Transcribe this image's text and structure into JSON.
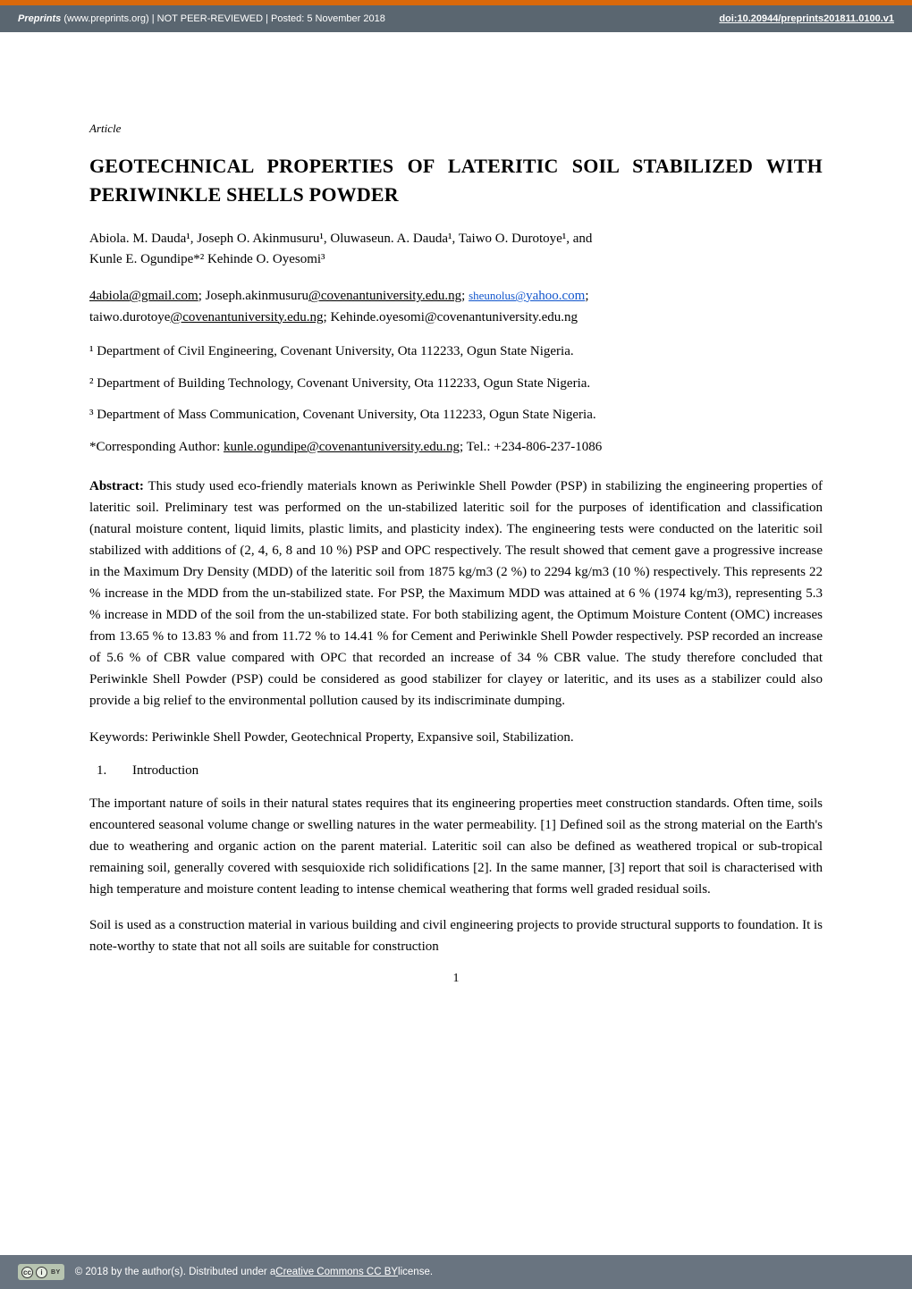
{
  "banner": {
    "site_bold": "Preprints",
    "site_rest": " (www.preprints.org)  |  NOT PEER-REVIEWED  |  Posted: 5 November 2018",
    "doi": "doi:10.20944/preprints201811.0100.v1",
    "border_top_color": "#d9680a",
    "background_color": "#5a6670",
    "text_color": "#ffffff"
  },
  "article": {
    "label": "Article",
    "title": "GEOTECHNICAL PROPERTIES OF LATERITIC SOIL STABILIZED WITH PERIWINKLE SHELLS POWDER",
    "authors_line1": "Abiola. M. Dauda¹, Joseph O. Akinmusuru¹, Oluwaseun. A. Dauda¹, Taiwo O. Durotoye¹, and",
    "authors_line2": "Kunle E. Ogundipe*² Kehinde O. Oyesomi³",
    "emails": {
      "e1_u": "4abiola@gmail.com",
      "sep1": "; Joseph.akinmusuru",
      "e2_u": "@covenantuniversity.edu.ng",
      "sep2": "; ",
      "e3_blue_a": "sheunolus@",
      "e3_blue_b": "yahoo.com",
      "sep3": ";",
      "line2_pre": "taiwo.durotoye",
      "e4_u": "@covenantuniversity.edu.ng",
      "sep4": "; Kehinde.oyesomi@covenantuniversity.edu.ng"
    },
    "affiliations": {
      "a1": "¹ Department of Civil Engineering, Covenant University, Ota 112233, Ogun State Nigeria.",
      "a2": "² Department of Building Technology, Covenant University, Ota 112233, Ogun State Nigeria.",
      "a3": "³ Department of Mass Communication, Covenant University, Ota 112233, Ogun State Nigeria."
    },
    "corresponding": {
      "pre": "*Corresponding Author: ",
      "email_u": "kunle.ogundipe@covenantuniversity.edu.ng",
      "post": "; Tel.: +234-806-237-1086"
    },
    "abstract_label": "Abstract: ",
    "abstract_text": "This study used eco-friendly materials known as Periwinkle Shell Powder (PSP) in stabilizing the engineering properties of lateritic soil. Preliminary test was performed on the un-stabilized lateritic soil for the purposes of identification and classification (natural moisture content, liquid limits, plastic limits, and plasticity index). The engineering tests were conducted on the lateritic soil stabilized with additions of (2, 4, 6, 8 and 10 %) PSP and OPC respectively. The result showed that cement gave a progressive increase in the Maximum Dry Density (MDD) of the lateritic soil from 1875 kg/m3 (2 %) to 2294 kg/m3 (10 %) respectively. This represents 22 % increase in the MDD from the un-stabilized state. For PSP, the Maximum MDD was attained at 6 % (1974 kg/m3), representing 5.3 % increase in MDD of the soil from the un-stabilized state. For both stabilizing agent, the Optimum Moisture Content (OMC) increases from 13.65 % to 13.83 % and from 11.72 % to 14.41 % for Cement and Periwinkle Shell Powder respectively. PSP recorded an increase of 5.6 % of CBR value compared with OPC that recorded an increase of 34 % CBR value. The study therefore concluded that Periwinkle Shell Powder (PSP) could be considered as good stabilizer for clayey or lateritic, and its uses as a stabilizer could also provide a big relief to the environmental pollution caused by its indiscriminate dumping.",
    "keywords": "Keywords: Periwinkle Shell Powder, Geotechnical Property, Expansive soil, Stabilization.",
    "section1_num": "1.",
    "section1_title": "Introduction",
    "para1": "The important nature of soils in their natural states requires that its engineering properties meet construction standards. Often time, soils encountered seasonal volume change or swelling natures in the water permeability. [1] Defined soil as the strong material on the Earth's due to weathering and organic action on the parent material. Lateritic soil can also be defined as weathered tropical or sub-tropical remaining soil, generally covered with sesquioxide rich solidifications [2]. In the same manner, [3] report that soil is characterised with high temperature and moisture content leading to intense chemical weathering that forms well graded residual soils.",
    "para2": "Soil is used as a construction material in various building and civil engineering projects to provide structural supports to foundation. It is note-worthy to state that not all soils are suitable for construction",
    "page_number": "1"
  },
  "footer": {
    "background_color": "#697480",
    "cc_glyph1": "cc",
    "cc_glyph2": "i",
    "cc_by": "BY",
    "text_pre": "©  2018 by the author(s). Distributed under a ",
    "license_u": "Creative Commons CC BY",
    "text_post": " license."
  }
}
